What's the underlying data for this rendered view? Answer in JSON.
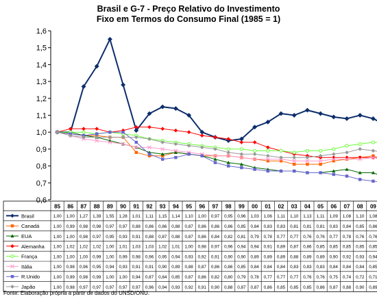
{
  "chart_data": {
    "type": "line",
    "title_lines": [
      "Brasil e G-7 - Preço Relativo do Investimento",
      "Fixo em Termos do Consumo Final (1985 = 1)"
    ],
    "source": "Fonte: Elaboração própria a partir de dados do UNSD/ONU.",
    "x": [
      "85",
      "86",
      "87",
      "88",
      "89",
      "90",
      "91",
      "92",
      "93",
      "94",
      "95",
      "96",
      "97",
      "98",
      "99",
      "00",
      "01",
      "02",
      "03",
      "04",
      "05",
      "06",
      "07",
      "08",
      "09",
      "10"
    ],
    "ylim": [
      0.6,
      1.6
    ],
    "yticks": [
      "0,6",
      "0,7",
      "0,8",
      "0,9",
      "1,0",
      "1,1",
      "1,2",
      "1,3",
      "1,4",
      "1,5",
      "1,6"
    ],
    "grid": false,
    "legend": "data-table-below",
    "series": [
      {
        "name": "Brasil",
        "color": "#0d2d6b",
        "marker": "diamond",
        "width": 2,
        "values": [
          1.0,
          1.0,
          1.27,
          1.39,
          1.55,
          1.28,
          1.01,
          1.11,
          1.15,
          1.14,
          1.1,
          1.0,
          0.97,
          0.95,
          0.96,
          1.03,
          1.06,
          1.11,
          1.1,
          1.13,
          1.11,
          1.09,
          1.08,
          1.1,
          1.08,
          1.04
        ],
        "labels": [
          "1,00",
          "1,00",
          "1,27",
          "1,39",
          "1,55",
          "1,28",
          "1,01",
          "1,11",
          "1,15",
          "1,14",
          "1,10",
          "1,00",
          "0,97",
          "0,95",
          "0,96",
          "1,03",
          "1,06",
          "1,11",
          "1,10",
          "1,13",
          "1,11",
          "1,09",
          "1,08",
          "1,10",
          "1,08",
          "1,04"
        ]
      },
      {
        "name": "Canadá",
        "color": "#ff6600",
        "marker": "square",
        "width": 1,
        "values": [
          1.0,
          0.99,
          0.98,
          0.98,
          0.97,
          0.97,
          0.88,
          0.86,
          0.86,
          0.88,
          0.87,
          0.86,
          0.86,
          0.86,
          0.85,
          0.84,
          0.83,
          0.83,
          0.81,
          0.81,
          0.81,
          0.83,
          0.84,
          0.85,
          0.86,
          0.83
        ],
        "labels": [
          "1,00",
          "0,99",
          "0,98",
          "0,98",
          "0,97",
          "0,97",
          "0,88",
          "0,86",
          "0,86",
          "0,88",
          "0,87",
          "0,86",
          "0,86",
          "0,86",
          "0,85",
          "0,84",
          "0,83",
          "0,83",
          "0,81",
          "0,81",
          "0,81",
          "0,83",
          "0,84",
          "0,85",
          "0,86",
          "0,83"
        ]
      },
      {
        "name": "EUA",
        "color": "#006600",
        "marker": "triangle",
        "width": 1,
        "values": [
          1.0,
          1.0,
          0.98,
          0.97,
          0.95,
          0.93,
          0.91,
          0.88,
          0.87,
          0.88,
          0.87,
          0.86,
          0.84,
          0.82,
          0.81,
          0.79,
          0.78,
          0.77,
          0.77,
          0.76,
          0.76,
          0.77,
          0.78,
          0.76,
          0.76,
          0.73
        ],
        "labels": [
          "1,00",
          "1,00",
          "0,98",
          "0,97",
          "0,95",
          "0,93",
          "0,91",
          "0,88",
          "0,87",
          "0,88",
          "0,87",
          "0,86",
          "0,84",
          "0,82",
          "0,81",
          "0,79",
          "0,78",
          "0,77",
          "0,77",
          "0,76",
          "0,76",
          "0,77",
          "0,78",
          "0,76",
          "0,76",
          "0,73"
        ]
      },
      {
        "name": "Alemanha",
        "color": "#ff0000",
        "marker": "diamond",
        "width": 1,
        "values": [
          1.0,
          1.02,
          1.02,
          1.02,
          1.0,
          1.01,
          1.03,
          1.03,
          1.02,
          1.01,
          1.0,
          0.98,
          0.97,
          0.96,
          0.94,
          0.94,
          0.91,
          0.89,
          0.87,
          0.86,
          0.85,
          0.85,
          0.85,
          0.85,
          0.85,
          0.84
        ],
        "labels": [
          "1,00",
          "1,02",
          "1,02",
          "1,02",
          "1,00",
          "1,01",
          "1,03",
          "1,03",
          "1,02",
          "1,01",
          "1,00",
          "0,98",
          "0,97",
          "0,96",
          "0,94",
          "0,94",
          "0,91",
          "0,89",
          "0,87",
          "0,86",
          "0,85",
          "0,85",
          "0,85",
          "0,85",
          "0,85",
          "0,84"
        ]
      },
      {
        "name": "França",
        "color": "#66ff33",
        "marker": "circle",
        "width": 1,
        "values": [
          1.0,
          1.0,
          1.0,
          0.99,
          1.0,
          0.99,
          0.98,
          0.96,
          0.95,
          0.94,
          0.93,
          0.92,
          0.91,
          0.9,
          0.9,
          0.89,
          0.89,
          0.89,
          0.88,
          0.89,
          0.89,
          0.9,
          0.92,
          0.93,
          0.94,
          0.94
        ],
        "labels": [
          "1,00",
          "1,00",
          "1,00",
          "0,99",
          "1,00",
          "0,99",
          "0,98",
          "0,96",
          "0,95",
          "0,94",
          "0,93",
          "0,92",
          "0,91",
          "0,90",
          "0,90",
          "0,89",
          "0,89",
          "0,89",
          "0,88",
          "0,89",
          "0,89",
          "0,90",
          "0,92",
          "0,93",
          "0,94",
          "0,94"
        ]
      },
      {
        "name": "Itália",
        "color": "#ff99cc",
        "marker": "cross",
        "width": 1,
        "values": [
          1.0,
          0.98,
          0.96,
          0.95,
          0.94,
          0.93,
          0.91,
          0.91,
          0.9,
          0.89,
          0.88,
          0.87,
          0.86,
          0.86,
          0.85,
          0.84,
          0.84,
          0.84,
          0.83,
          0.83,
          0.83,
          0.84,
          0.84,
          0.84,
          0.85,
          0.85
        ],
        "labels": [
          "1,00",
          "0,98",
          "0,96",
          "0,95",
          "0,94",
          "0,93",
          "0,91",
          "0,91",
          "0,90",
          "0,89",
          "0,88",
          "0,87",
          "0,86",
          "0,86",
          "0,85",
          "0,84",
          "0,84",
          "0,84",
          "0,83",
          "0,83",
          "0,83",
          "0,84",
          "0,84",
          "0,84",
          "0,85",
          "0,85"
        ]
      },
      {
        "name": "R.Unido",
        "color": "#6666cc",
        "marker": "square",
        "width": 1,
        "values": [
          1.0,
          0.99,
          0.98,
          0.99,
          1.0,
          1.0,
          0.94,
          0.87,
          0.84,
          0.85,
          0.87,
          0.86,
          0.82,
          0.8,
          0.79,
          0.78,
          0.77,
          0.77,
          0.77,
          0.76,
          0.76,
          0.75,
          0.74,
          0.72,
          0.71,
          0.7
        ],
        "labels": [
          "1,00",
          "0,99",
          "0,98",
          "0,99",
          "1,00",
          "1,00",
          "0,94",
          "0,87",
          "0,84",
          "0,85",
          "0,87",
          "0,86",
          "0,82",
          "0,80",
          "0,79",
          "0,78",
          "0,77",
          "0,77",
          "0,77",
          "0,76",
          "0,76",
          "0,75",
          "0,74",
          "0,72",
          "0,71",
          "0,70"
        ]
      },
      {
        "name": "Japão",
        "color": "#999999",
        "marker": "diamond",
        "width": 1,
        "values": [
          1.0,
          0.98,
          0.97,
          0.97,
          0.97,
          0.97,
          0.97,
          0.96,
          0.94,
          0.93,
          0.92,
          0.91,
          0.9,
          0.88,
          0.87,
          0.87,
          0.86,
          0.85,
          0.85,
          0.85,
          0.86,
          0.87,
          0.88,
          0.9,
          0.89,
          0.88
        ],
        "labels": [
          "1,00",
          "0,98",
          "0,97",
          "0,97",
          "0,97",
          "0,97",
          "0,97",
          "0,96",
          "0,94",
          "0,93",
          "0,92",
          "0,91",
          "0,90",
          "0,88",
          "0,87",
          "0,87",
          "0,86",
          "0,85",
          "0,85",
          "0,85",
          "0,86",
          "0,87",
          "0,88",
          "0,90",
          "0,89",
          "0,88"
        ]
      }
    ]
  }
}
